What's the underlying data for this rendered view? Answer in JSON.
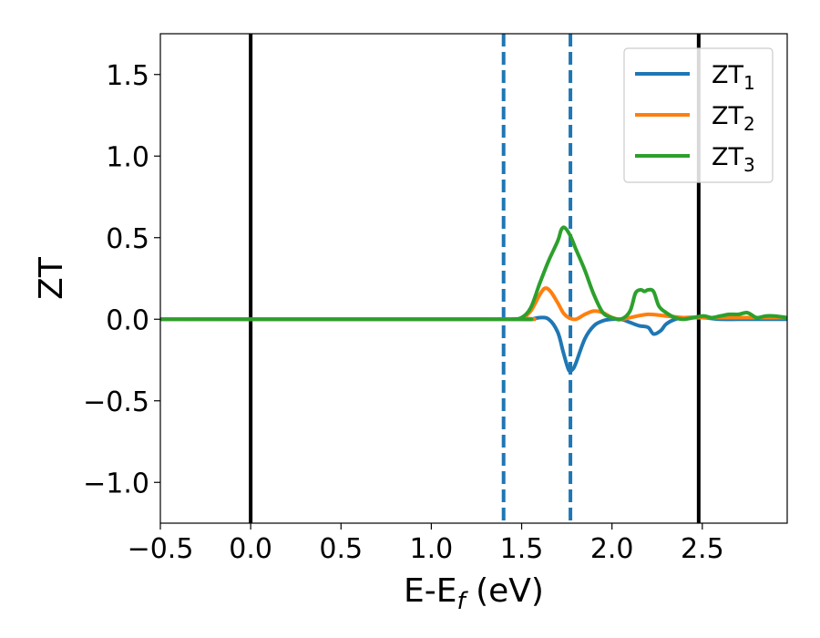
{
  "chart_data": {
    "type": "line",
    "xlabel": {
      "main": "E-E",
      "sub": "f",
      "unit": " (eV)"
    },
    "ylabel": "ZT",
    "xlim": [
      -0.5,
      2.97
    ],
    "ylim": [
      -1.25,
      1.75
    ],
    "xticks": [
      {
        "value": -0.5,
        "label": "−0.5"
      },
      {
        "value": 0.0,
        "label": "0.0"
      },
      {
        "value": 0.5,
        "label": "0.5"
      },
      {
        "value": 1.0,
        "label": "1.0"
      },
      {
        "value": 1.5,
        "label": "1.5"
      },
      {
        "value": 2.0,
        "label": "2.0"
      },
      {
        "value": 2.5,
        "label": "2.5"
      }
    ],
    "yticks": [
      {
        "value": -1.0,
        "label": "−1.0"
      },
      {
        "value": -0.5,
        "label": "−0.5"
      },
      {
        "value": 0.0,
        "label": "0.0"
      },
      {
        "value": 0.5,
        "label": "0.5"
      },
      {
        "value": 1.0,
        "label": "1.0"
      },
      {
        "value": 1.5,
        "label": "1.5"
      }
    ],
    "grid": false,
    "legend_position": "top-right",
    "vlines": [
      {
        "x": 0.0,
        "style": "solid",
        "color": "#000000"
      },
      {
        "x": 2.48,
        "style": "solid",
        "color": "#000000"
      },
      {
        "x": 1.4,
        "style": "dashed",
        "color": "#1f77b4"
      },
      {
        "x": 1.77,
        "style": "dashed",
        "color": "#1f77b4"
      }
    ],
    "series": [
      {
        "name": "ZT",
        "sub": "1",
        "color": "#1f77b4",
        "x": [
          -0.5,
          1.4,
          1.5,
          1.55,
          1.6,
          1.65,
          1.7,
          1.73,
          1.76,
          1.78,
          1.8,
          1.85,
          1.9,
          1.95,
          2.0,
          2.05,
          2.1,
          2.15,
          2.2,
          2.23,
          2.27,
          2.3,
          2.35,
          2.4,
          2.5,
          2.6,
          2.7,
          2.8,
          2.9,
          2.97
        ],
        "y": [
          0.0,
          0.0,
          0.0,
          0.0,
          0.01,
          0.0,
          -0.08,
          -0.2,
          -0.31,
          -0.31,
          -0.27,
          -0.12,
          -0.04,
          -0.01,
          0.0,
          0.0,
          -0.02,
          -0.04,
          -0.05,
          -0.09,
          -0.07,
          -0.03,
          0.0,
          0.01,
          0.01,
          0.0,
          0.0,
          0.0,
          0.0,
          0.0
        ]
      },
      {
        "name": "ZT",
        "sub": "2",
        "color": "#ff7f0e",
        "x": [
          -0.5,
          1.4,
          1.5,
          1.55,
          1.6,
          1.63,
          1.66,
          1.7,
          1.73,
          1.76,
          1.8,
          1.85,
          1.9,
          1.95,
          2.0,
          2.05,
          2.1,
          2.2,
          2.3,
          2.4,
          2.5,
          2.6,
          2.7,
          2.8,
          2.9,
          2.97
        ],
        "y": [
          0.0,
          0.0,
          0.01,
          0.05,
          0.15,
          0.19,
          0.17,
          0.1,
          0.04,
          0.01,
          0.0,
          0.03,
          0.05,
          0.04,
          0.01,
          0.0,
          0.01,
          0.03,
          0.02,
          0.01,
          0.01,
          0.01,
          0.01,
          0.01,
          0.01,
          0.01
        ]
      },
      {
        "name": "ZT",
        "sub": "3",
        "color": "#2ca02c",
        "x": [
          -0.5,
          1.4,
          1.45,
          1.5,
          1.55,
          1.6,
          1.65,
          1.7,
          1.72,
          1.74,
          1.77,
          1.8,
          1.85,
          1.9,
          1.95,
          2.0,
          2.05,
          2.1,
          2.13,
          2.16,
          2.18,
          2.2,
          2.23,
          2.26,
          2.3,
          2.35,
          2.4,
          2.5,
          2.55,
          2.6,
          2.65,
          2.7,
          2.75,
          2.8,
          2.85,
          2.9,
          2.97
        ],
        "y": [
          0.0,
          0.0,
          0.0,
          0.01,
          0.07,
          0.22,
          0.36,
          0.48,
          0.55,
          0.56,
          0.51,
          0.43,
          0.3,
          0.15,
          0.04,
          0.01,
          0.0,
          0.05,
          0.16,
          0.18,
          0.17,
          0.18,
          0.17,
          0.08,
          0.04,
          0.01,
          0.0,
          0.02,
          0.01,
          0.02,
          0.03,
          0.03,
          0.04,
          0.01,
          0.02,
          0.02,
          0.01
        ]
      }
    ]
  }
}
